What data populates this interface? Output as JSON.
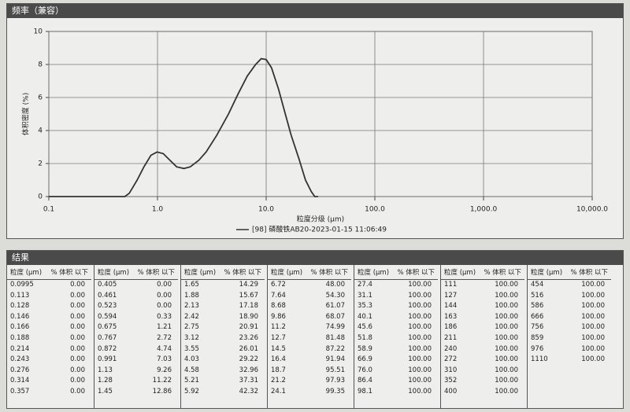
{
  "chart_data": {
    "type": "line",
    "title": "频率（兼容）",
    "ylabel": "体积密度 (%)",
    "xlabel": "粒度分级 (μm)",
    "log_x": true,
    "grid": true,
    "xlim": [
      0.1,
      10000
    ],
    "xticks": [
      {
        "value": 0.1,
        "label": "0.1"
      },
      {
        "value": 1,
        "label": "1.0"
      },
      {
        "value": 10,
        "label": "10.0"
      },
      {
        "value": 100,
        "label": "100.0"
      },
      {
        "value": 1000,
        "label": "1,000.0"
      },
      {
        "value": 10000,
        "label": "10,000.0"
      }
    ],
    "ylim": [
      0,
      10
    ],
    "yticks": [
      0,
      2,
      4,
      6,
      8,
      10
    ],
    "series": [
      {
        "name": "[98] 磷酸铁AB20-2023-01-15 11:06:49",
        "color": "#333333",
        "x": [
          0.1,
          0.5,
          0.55,
          0.65,
          0.75,
          0.87,
          0.99,
          1.13,
          1.3,
          1.5,
          1.75,
          2.0,
          2.4,
          2.8,
          3.5,
          4.5,
          5.5,
          6.7,
          8.0,
          9.0,
          10.0,
          11.2,
          13,
          15,
          17,
          20,
          23,
          26,
          28,
          30
        ],
        "values": [
          0,
          0,
          0.2,
          1.0,
          1.8,
          2.5,
          2.7,
          2.6,
          2.2,
          1.8,
          1.7,
          1.8,
          2.2,
          2.7,
          3.7,
          5.0,
          6.2,
          7.3,
          8.0,
          8.35,
          8.3,
          7.8,
          6.5,
          5.0,
          3.7,
          2.3,
          1.0,
          0.3,
          0,
          0
        ]
      }
    ]
  },
  "table": {
    "title": "结果",
    "headers": [
      "粒度 (μm)",
      "% 体积 以下"
    ],
    "columns": [
      [
        [
          "0.0995",
          "0.00"
        ],
        [
          "0.113",
          "0.00"
        ],
        [
          "0.128",
          "0.00"
        ],
        [
          "0.146",
          "0.00"
        ],
        [
          "0.166",
          "0.00"
        ],
        [
          "0.188",
          "0.00"
        ],
        [
          "0.214",
          "0.00"
        ],
        [
          "0.243",
          "0.00"
        ],
        [
          "0.276",
          "0.00"
        ],
        [
          "0.314",
          "0.00"
        ],
        [
          "0.357",
          "0.00"
        ]
      ],
      [
        [
          "0.405",
          "0.00"
        ],
        [
          "0.461",
          "0.00"
        ],
        [
          "0.523",
          "0.00"
        ],
        [
          "0.594",
          "0.33"
        ],
        [
          "0.675",
          "1.21"
        ],
        [
          "0.767",
          "2.72"
        ],
        [
          "0.872",
          "4.74"
        ],
        [
          "0.991",
          "7.03"
        ],
        [
          "1.13",
          "9.26"
        ],
        [
          "1.28",
          "11.22"
        ],
        [
          "1.45",
          "12.86"
        ]
      ],
      [
        [
          "1.65",
          "14.29"
        ],
        [
          "1.88",
          "15.67"
        ],
        [
          "2.13",
          "17.18"
        ],
        [
          "2.42",
          "18.90"
        ],
        [
          "2.75",
          "20.91"
        ],
        [
          "3.12",
          "23.26"
        ],
        [
          "3.55",
          "26.01"
        ],
        [
          "4.03",
          "29.22"
        ],
        [
          "4.58",
          "32.96"
        ],
        [
          "5.21",
          "37.31"
        ],
        [
          "5.92",
          "42.32"
        ]
      ],
      [
        [
          "6.72",
          "48.00"
        ],
        [
          "7.64",
          "54.30"
        ],
        [
          "8.68",
          "61.07"
        ],
        [
          "9.86",
          "68.07"
        ],
        [
          "11.2",
          "74.99"
        ],
        [
          "12.7",
          "81.48"
        ],
        [
          "14.5",
          "87.22"
        ],
        [
          "16.4",
          "91.94"
        ],
        [
          "18.7",
          "95.51"
        ],
        [
          "21.2",
          "97.93"
        ],
        [
          "24.1",
          "99.35"
        ]
      ],
      [
        [
          "27.4",
          "100.00"
        ],
        [
          "31.1",
          "100.00"
        ],
        [
          "35.3",
          "100.00"
        ],
        [
          "40.1",
          "100.00"
        ],
        [
          "45.6",
          "100.00"
        ],
        [
          "51.8",
          "100.00"
        ],
        [
          "58.9",
          "100.00"
        ],
        [
          "66.9",
          "100.00"
        ],
        [
          "76.0",
          "100.00"
        ],
        [
          "86.4",
          "100.00"
        ],
        [
          "98.1",
          "100.00"
        ]
      ],
      [
        [
          "111",
          "100.00"
        ],
        [
          "127",
          "100.00"
        ],
        [
          "144",
          "100.00"
        ],
        [
          "163",
          "100.00"
        ],
        [
          "186",
          "100.00"
        ],
        [
          "211",
          "100.00"
        ],
        [
          "240",
          "100.00"
        ],
        [
          "272",
          "100.00"
        ],
        [
          "310",
          "100.00"
        ],
        [
          "352",
          "100.00"
        ],
        [
          "400",
          "100.00"
        ]
      ],
      [
        [
          "454",
          "100.00"
        ],
        [
          "516",
          "100.00"
        ],
        [
          "586",
          "100.00"
        ],
        [
          "666",
          "100.00"
        ],
        [
          "756",
          "100.00"
        ],
        [
          "859",
          "100.00"
        ],
        [
          "976",
          "100.00"
        ],
        [
          "1110",
          "100.00"
        ]
      ]
    ]
  }
}
